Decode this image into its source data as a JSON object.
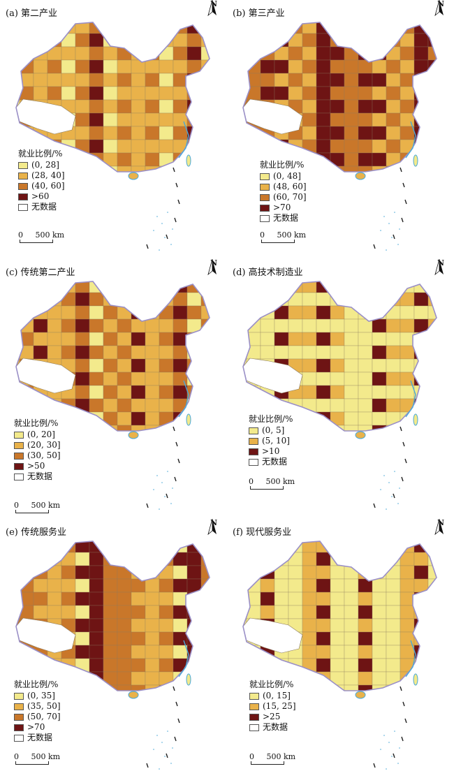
{
  "north_label": "N",
  "scale_label": "0     500 km",
  "no_data_color": "#ffffff",
  "border_color": "#9a8fc7",
  "coast_color": "#4aa8d8",
  "panels": [
    {
      "title": "(a) 第二产业",
      "legend_title": "就业比例/%",
      "classes": [
        {
          "label": "(0, 28]",
          "color": "#f3ea8c"
        },
        {
          "label": "(28, 40]",
          "color": "#e9b24a"
        },
        {
          "label": "(40, 60]",
          "color": "#c9772a"
        },
        {
          "label": ">60",
          "color": "#6e1414"
        },
        {
          "label": "无数据",
          "color": "#ffffff"
        }
      ]
    },
    {
      "title": "(b) 第三产业",
      "legend_title": "就业比例/%",
      "classes": [
        {
          "label": "(0, 48]",
          "color": "#f3ea8c"
        },
        {
          "label": "(48, 60]",
          "color": "#e9b24a"
        },
        {
          "label": "(60, 70]",
          "color": "#c9772a"
        },
        {
          "label": ">70",
          "color": "#6e1414"
        },
        {
          "label": "无数据",
          "color": "#ffffff"
        }
      ]
    },
    {
      "title": "(c) 传统第二产业",
      "legend_title": "就业比例/%",
      "classes": [
        {
          "label": "(0, 20]",
          "color": "#f3ea8c"
        },
        {
          "label": "(20, 30]",
          "color": "#e9b24a"
        },
        {
          "label": "(30, 50]",
          "color": "#c9772a"
        },
        {
          "label": ">50",
          "color": "#6e1414"
        },
        {
          "label": "无数据",
          "color": "#ffffff"
        }
      ]
    },
    {
      "title": "(d) 高技术制造业",
      "legend_title": "就业比例/%",
      "classes": [
        {
          "label": "(0, 5]",
          "color": "#f3ea8c"
        },
        {
          "label": "(5, 10]",
          "color": "#e9b24a"
        },
        {
          "label": ">10",
          "color": "#6e1414"
        },
        {
          "label": "无数据",
          "color": "#ffffff"
        }
      ]
    },
    {
      "title": "(e) 传统服务业",
      "legend_title": "就业比例/%",
      "classes": [
        {
          "label": "(0, 35]",
          "color": "#f3ea8c"
        },
        {
          "label": "(35, 50]",
          "color": "#e9b24a"
        },
        {
          "label": "(50, 70]",
          "color": "#c9772a"
        },
        {
          "label": ">70",
          "color": "#6e1414"
        },
        {
          "label": "无数据",
          "color": "#ffffff"
        }
      ]
    },
    {
      "title": "(f) 现代服务业",
      "legend_title": "就业比例/%",
      "classes": [
        {
          "label": "(0, 15]",
          "color": "#f3ea8c"
        },
        {
          "label": "(15, 25]",
          "color": "#e9b24a"
        },
        {
          "label": ">25",
          "color": "#6e1414"
        },
        {
          "label": "无数据",
          "color": "#ffffff"
        }
      ]
    }
  ]
}
